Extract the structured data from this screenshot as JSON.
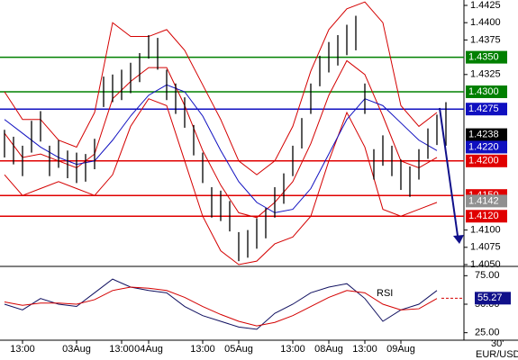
{
  "chart_data": {
    "type": "ohlc",
    "symbol": "EUR/USD",
    "timeframe": "30'",
    "categories": [
      null,
      null,
      "13:00",
      null,
      null,
      null,
      null,
      null,
      "03Aug",
      null,
      null,
      null,
      null,
      "13:00",
      null,
      null,
      "04Aug",
      null,
      null,
      null,
      null,
      null,
      "13:00",
      null,
      null,
      null,
      "05Aug",
      null,
      null,
      null,
      null,
      null,
      "13:00",
      null,
      null,
      null,
      "08Aug",
      null,
      null,
      null,
      "13:00",
      null,
      null,
      null,
      "09Aug",
      null,
      null,
      null,
      null,
      null
    ],
    "high": [
      1.4245,
      1.4235,
      1.4222,
      1.4258,
      1.4272,
      1.4222,
      1.423,
      1.4215,
      1.4212,
      1.421,
      1.4232,
      1.4322,
      1.4325,
      1.4332,
      1.4342,
      1.4356,
      1.4382,
      1.4378,
      1.4332,
      1.4312,
      1.4292,
      1.4252,
      1.4212,
      1.4162,
      1.4157,
      1.4142,
      1.4097,
      1.41,
      1.4117,
      1.4132,
      1.4162,
      1.4182,
      1.4222,
      1.4262,
      1.4312,
      1.4352,
      1.4372,
      1.4382,
      1.4397,
      1.441,
      1.4312,
      1.4217,
      1.4237,
      1.4222,
      1.4202,
      1.4192,
      1.4217,
      1.4247,
      1.4267,
      1.4285
    ],
    "low": [
      1.4205,
      1.4195,
      1.4178,
      1.4212,
      1.4228,
      1.4178,
      1.419,
      1.4175,
      1.4168,
      1.417,
      1.4188,
      1.4278,
      1.4285,
      1.4288,
      1.4298,
      1.4314,
      1.4348,
      1.4332,
      1.4288,
      1.4268,
      1.4248,
      1.4208,
      1.4168,
      1.4118,
      1.4113,
      1.4098,
      1.4055,
      1.406,
      1.4073,
      1.4088,
      1.4118,
      1.4138,
      1.4178,
      1.4218,
      1.4268,
      1.4308,
      1.4328,
      1.4338,
      1.4353,
      1.436,
      1.4268,
      1.4173,
      1.4193,
      1.4178,
      1.4158,
      1.4148,
      1.4173,
      1.4203,
      1.4223,
      1.4222
    ],
    "bands": [
      {
        "name": "upper",
        "color": "#d40000",
        "values": [
          1.43,
          1.426,
          1.426,
          1.423,
          1.422,
          1.427,
          1.44,
          1.438,
          1.438,
          1.439,
          1.436,
          1.431,
          1.426,
          1.42,
          1.418,
          1.42,
          1.425,
          1.433,
          1.439,
          1.442,
          1.443,
          1.44,
          1.428,
          1.425,
          1.427
        ]
      },
      {
        "name": "middle",
        "color": "#d40000",
        "values": [
          1.424,
          1.4205,
          1.421,
          1.42,
          1.419,
          1.421,
          1.429,
          1.4315,
          1.4335,
          1.4335,
          1.428,
          1.4215,
          1.4165,
          1.4125,
          1.4118,
          1.414,
          1.417,
          1.4225,
          1.4295,
          1.4345,
          1.4325,
          1.4265,
          1.42,
          1.419,
          1.4205
        ]
      },
      {
        "name": "lower",
        "color": "#d40000",
        "values": [
          1.418,
          1.415,
          1.416,
          1.417,
          1.416,
          1.415,
          1.418,
          1.425,
          1.429,
          1.428,
          1.42,
          1.412,
          1.407,
          1.405,
          1.4055,
          1.408,
          1.409,
          1.412,
          1.42,
          1.427,
          1.422,
          1.413,
          1.412,
          1.413,
          1.414
        ]
      },
      {
        "name": "ma",
        "color": "#1010c0",
        "values": [
          1.426,
          1.424,
          1.422,
          1.4205,
          1.4195,
          1.42,
          1.423,
          1.4265,
          1.4295,
          1.431,
          1.43,
          1.4265,
          1.4215,
          1.417,
          1.414,
          1.4125,
          1.413,
          1.416,
          1.421,
          1.426,
          1.429,
          1.428,
          1.4255,
          1.423,
          1.4215
        ]
      }
    ],
    "levels": [
      {
        "value": 1.435,
        "label": "1.4350",
        "color": "#008000"
      },
      {
        "value": 1.43,
        "label": "1.4300",
        "color": "#008000"
      },
      {
        "value": 1.4275,
        "label": "1.4275",
        "color": "#1010c0"
      },
      {
        "value": 1.42,
        "label": "1.4200",
        "color": "#e00000"
      },
      {
        "value": 1.415,
        "label": "1.4150",
        "color": "#e00000"
      },
      {
        "value": 1.412,
        "label": "1.4120",
        "color": "#e00000"
      }
    ],
    "price_tags": [
      {
        "value": 1.4238,
        "label": "1.4238",
        "color": "#000000"
      },
      {
        "value": 1.422,
        "label": "1.4220",
        "color": "#1010c0"
      },
      {
        "value": 1.4142,
        "label": "1.4142",
        "color": "#909090"
      }
    ],
    "ylim": [
      1.405,
      1.4425
    ],
    "yticks": [
      {
        "value": 1.405,
        "label": "1.4050"
      },
      {
        "value": 1.4075,
        "label": "1.4075"
      },
      {
        "value": 1.41,
        "label": "1.4100"
      },
      {
        "value": 1.4325,
        "label": "1.4325"
      },
      {
        "value": 1.4375,
        "label": "1.4375"
      },
      {
        "value": 1.44,
        "label": "1.4400"
      },
      {
        "value": 1.4425,
        "label": "1.4425"
      }
    ],
    "rsi": {
      "title": "RSI",
      "ylim": [
        20,
        80
      ],
      "yticks": [
        {
          "value": 25,
          "label": "25.00"
        },
        {
          "value": 50,
          "label": "50.00"
        },
        {
          "value": 75,
          "label": "75.00"
        }
      ],
      "current": {
        "value": 55.27,
        "label": "55.27"
      },
      "series": [
        {
          "name": "rsi",
          "color": "#101060",
          "values": [
            50,
            45,
            55,
            50,
            48,
            60,
            72,
            65,
            62,
            60,
            48,
            40,
            35,
            30,
            28,
            42,
            50,
            60,
            65,
            68,
            55,
            35,
            45,
            50,
            62
          ]
        },
        {
          "name": "rsi-ma",
          "color": "#d40000",
          "values": [
            52,
            49,
            51,
            51,
            50,
            54,
            62,
            65,
            64,
            62,
            56,
            48,
            41,
            35,
            31,
            34,
            40,
            48,
            56,
            62,
            60,
            50,
            45,
            46,
            55
          ]
        }
      ]
    }
  }
}
